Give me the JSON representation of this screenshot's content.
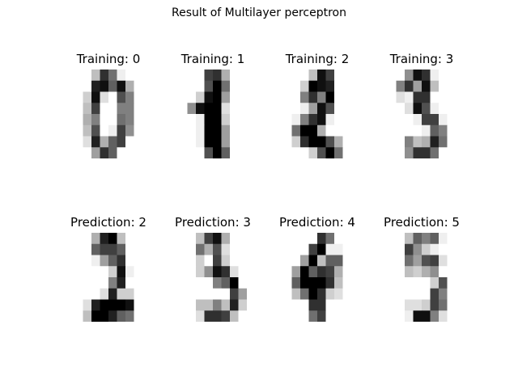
{
  "figure": {
    "title": "Result of Multilayer perceptron"
  },
  "panels": [
    {
      "title": "Training: 0",
      "pixels": [
        [
          0,
          0,
          4,
          13,
          9,
          1,
          0,
          0
        ],
        [
          0,
          0,
          14,
          15,
          10,
          15,
          5,
          0
        ],
        [
          0,
          3,
          15,
          2,
          0,
          11,
          8,
          0
        ],
        [
          0,
          4,
          12,
          0,
          0,
          8,
          8,
          0
        ],
        [
          0,
          5,
          8,
          0,
          0,
          9,
          8,
          0
        ],
        [
          0,
          4,
          11,
          0,
          1,
          12,
          7,
          0
        ],
        [
          0,
          2,
          14,
          5,
          10,
          12,
          0,
          0
        ],
        [
          0,
          0,
          6,
          13,
          10,
          0,
          0,
          0
        ]
      ]
    },
    {
      "title": "Training: 1",
      "pixels": [
        [
          0,
          0,
          0,
          12,
          13,
          5,
          0,
          0
        ],
        [
          0,
          0,
          0,
          11,
          16,
          9,
          0,
          0
        ],
        [
          0,
          0,
          3,
          15,
          16,
          6,
          0,
          0
        ],
        [
          0,
          7,
          15,
          16,
          16,
          2,
          0,
          0
        ],
        [
          0,
          0,
          1,
          16,
          16,
          3,
          0,
          0
        ],
        [
          0,
          0,
          1,
          16,
          16,
          6,
          0,
          0
        ],
        [
          0,
          0,
          1,
          16,
          16,
          6,
          0,
          0
        ],
        [
          0,
          0,
          0,
          11,
          16,
          10,
          0,
          0
        ]
      ]
    },
    {
      "title": "Training: 2",
      "pixels": [
        [
          0,
          0,
          0,
          4,
          15,
          12,
          0,
          0
        ],
        [
          0,
          0,
          3,
          16,
          15,
          14,
          0,
          0
        ],
        [
          0,
          0,
          8,
          13,
          8,
          16,
          0,
          0
        ],
        [
          0,
          0,
          1,
          6,
          15,
          11,
          0,
          0
        ],
        [
          0,
          1,
          8,
          13,
          15,
          1,
          0,
          0
        ],
        [
          0,
          9,
          16,
          16,
          5,
          0,
          0,
          0
        ],
        [
          0,
          3,
          13,
          16,
          16,
          11,
          5,
          0
        ],
        [
          0,
          0,
          0,
          3,
          11,
          16,
          9,
          0
        ]
      ]
    },
    {
      "title": "Training: 3",
      "pixels": [
        [
          0,
          0,
          7,
          15,
          13,
          1,
          0,
          0
        ],
        [
          0,
          8,
          13,
          6,
          15,
          4,
          0,
          0
        ],
        [
          0,
          2,
          1,
          13,
          13,
          0,
          0,
          0
        ],
        [
          0,
          0,
          2,
          15,
          11,
          1,
          0,
          0
        ],
        [
          0,
          0,
          0,
          1,
          12,
          12,
          1,
          0
        ],
        [
          0,
          0,
          0,
          0,
          1,
          10,
          8,
          0
        ],
        [
          0,
          0,
          8,
          4,
          5,
          14,
          9,
          0
        ],
        [
          0,
          0,
          7,
          13,
          13,
          9,
          0,
          0
        ]
      ]
    },
    {
      "title": "Prediction: 2",
      "pixels": [
        [
          0,
          0,
          5,
          14,
          16,
          4,
          0,
          0
        ],
        [
          0,
          0,
          10,
          12,
          12,
          10,
          0,
          0
        ],
        [
          0,
          0,
          1,
          6,
          10,
          13,
          0,
          0
        ],
        [
          0,
          0,
          0,
          0,
          3,
          15,
          1,
          0
        ],
        [
          0,
          0,
          0,
          0,
          8,
          14,
          0,
          0
        ],
        [
          0,
          0,
          0,
          2,
          14,
          3,
          3,
          0
        ],
        [
          0,
          2,
          14,
          16,
          16,
          16,
          15,
          0
        ],
        [
          0,
          4,
          16,
          16,
          14,
          10,
          9,
          0
        ]
      ]
    },
    {
      "title": "Prediction: 3",
      "pixels": [
        [
          0,
          0,
          4,
          12,
          15,
          5,
          0,
          0
        ],
        [
          0,
          0,
          9,
          5,
          11,
          2,
          0,
          0
        ],
        [
          0,
          0,
          3,
          0,
          12,
          3,
          0,
          0
        ],
        [
          0,
          0,
          3,
          7,
          15,
          13,
          2,
          0
        ],
        [
          0,
          0,
          0,
          0,
          8,
          10,
          16,
          0
        ],
        [
          0,
          0,
          0,
          0,
          0,
          0,
          12,
          6
        ],
        [
          0,
          0,
          4,
          4,
          8,
          4,
          14,
          3
        ],
        [
          0,
          0,
          2,
          13,
          13,
          12,
          4,
          0
        ]
      ]
    },
    {
      "title": "Prediction: 4",
      "pixels": [
        [
          0,
          0,
          0,
          0,
          13,
          9,
          0,
          0
        ],
        [
          0,
          0,
          0,
          12,
          16,
          1,
          1,
          0
        ],
        [
          0,
          0,
          6,
          16,
          4,
          10,
          10,
          0
        ],
        [
          0,
          6,
          16,
          10,
          13,
          12,
          5,
          0
        ],
        [
          0,
          10,
          16,
          16,
          16,
          13,
          4,
          0
        ],
        [
          0,
          4,
          9,
          16,
          13,
          3,
          2,
          0
        ],
        [
          0,
          0,
          0,
          13,
          13,
          0,
          0,
          0
        ],
        [
          0,
          0,
          0,
          9,
          12,
          0,
          0,
          0
        ]
      ]
    },
    {
      "title": "Prediction: 5",
      "pixels": [
        [
          0,
          0,
          4,
          10,
          8,
          10,
          1,
          0
        ],
        [
          0,
          0,
          12,
          7,
          3,
          1,
          0,
          0
        ],
        [
          0,
          0,
          9,
          6,
          11,
          12,
          2,
          0
        ],
        [
          0,
          0,
          4,
          3,
          5,
          7,
          0,
          0
        ],
        [
          0,
          0,
          0,
          0,
          0,
          3,
          11,
          0
        ],
        [
          0,
          0,
          0,
          0,
          0,
          12,
          8,
          0
        ],
        [
          0,
          0,
          2,
          2,
          3,
          12,
          9,
          0
        ],
        [
          0,
          0,
          1,
          15,
          15,
          8,
          2,
          0
        ]
      ]
    }
  ]
}
